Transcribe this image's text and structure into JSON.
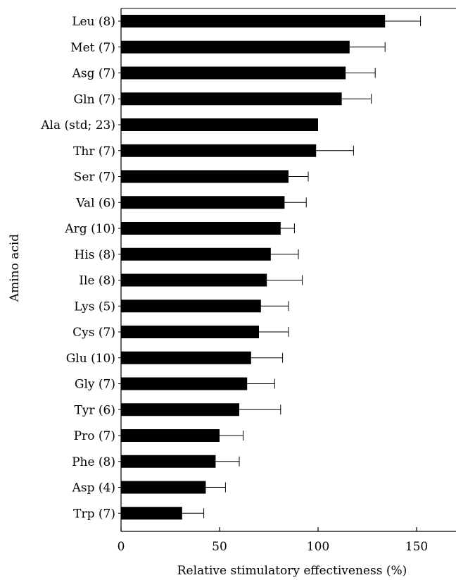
{
  "chart_data": {
    "type": "bar",
    "orientation": "horizontal",
    "xlabel": "Relative stimulatory effectiveness (%)",
    "ylabel": "Amino acid",
    "xlim": [
      0,
      170
    ],
    "xticks": [
      0,
      50,
      100,
      150
    ],
    "grid": false,
    "bar_color": "#000000",
    "categories": [
      "Leu (8)",
      "Met (7)",
      "Asg (7)",
      "Gln (7)",
      "Ala (std; 23)",
      "Thr (7)",
      "Ser (7)",
      "Val (6)",
      "Arg (10)",
      "His (8)",
      "Ile (8)",
      "Lys (5)",
      "Cys (7)",
      "Glu (10)",
      "Gly (7)",
      "Tyr (6)",
      "Pro (7)",
      "Phe (8)",
      "Asp (4)",
      "Trp (7)"
    ],
    "values": [
      134,
      116,
      114,
      112,
      100,
      99,
      85,
      83,
      81,
      76,
      74,
      71,
      70,
      66,
      64,
      60,
      50,
      48,
      43,
      31
    ],
    "error_upper": [
      152,
      134,
      129,
      127,
      null,
      118,
      95,
      94,
      88,
      90,
      92,
      85,
      85,
      82,
      78,
      81,
      62,
      60,
      53,
      42
    ]
  }
}
